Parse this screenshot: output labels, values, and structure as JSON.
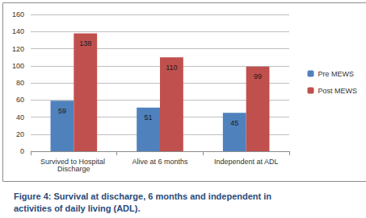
{
  "chart_data": {
    "type": "bar",
    "title": "Figure 4: Survival at discharge, 6 months and independent in activities of daily living (ADL).",
    "categories": [
      "Survived to Hospital Discharge",
      "Alive at 6 months",
      "Independent at ADL"
    ],
    "series": [
      {
        "name": "Pre MEWS",
        "color": "#4f81bd",
        "values": [
          59,
          51,
          45
        ]
      },
      {
        "name": "Post MEWS",
        "color": "#c0504d",
        "values": [
          138,
          110,
          99
        ]
      }
    ],
    "ylim": [
      0,
      160
    ],
    "yticks": [
      0,
      20,
      40,
      60,
      80,
      100,
      120,
      140,
      160
    ],
    "grid": true,
    "legend": "right",
    "data_labels": true
  }
}
